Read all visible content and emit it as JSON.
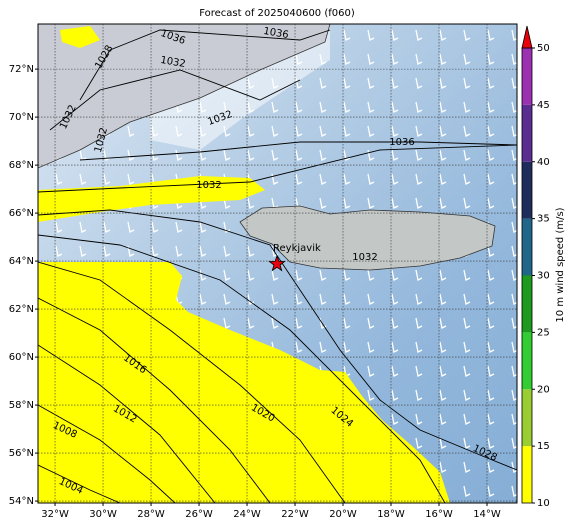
{
  "title": "Forecast of 2025040600 (f060)",
  "map": {
    "lonlim": [
      -32.71,
      -12.75
    ],
    "latlim": [
      53.92,
      73.88
    ],
    "grid": true,
    "lonticks": [
      {
        "value": -32,
        "label": "32°W"
      },
      {
        "value": -30,
        "label": "30°W"
      },
      {
        "value": -28,
        "label": "28°W"
      },
      {
        "value": -26,
        "label": "26°W"
      },
      {
        "value": -24,
        "label": "24°W"
      },
      {
        "value": -22,
        "label": "22°W"
      },
      {
        "value": -20,
        "label": "20°W"
      },
      {
        "value": -18,
        "label": "18°W"
      },
      {
        "value": -16,
        "label": "16°W"
      },
      {
        "value": -14,
        "label": "14°W"
      }
    ],
    "latticks": [
      {
        "value": 72,
        "label": "72°N"
      },
      {
        "value": 70,
        "label": "70°N"
      },
      {
        "value": 68,
        "label": "68°N"
      },
      {
        "value": 66,
        "label": "66°N"
      },
      {
        "value": 64,
        "label": "64°N"
      },
      {
        "value": 62,
        "label": "62°N"
      },
      {
        "value": 60,
        "label": "60°N"
      },
      {
        "value": 58,
        "label": "58°N"
      },
      {
        "value": 56,
        "label": "56°N"
      },
      {
        "value": 54,
        "label": "54°N"
      }
    ]
  },
  "colorbar": {
    "label": "10 m wind speed (m/s)",
    "lim": [
      10,
      50
    ],
    "ticks": [
      10,
      15,
      20,
      25,
      30,
      35,
      40,
      45,
      50
    ],
    "colors": [
      "#ffff00",
      "#9acd32",
      "#32cd32",
      "#1e9a1e",
      "#1f6688",
      "#1f2d5c",
      "#5a2d91",
      "#9b30b0"
    ],
    "extend_color": "#e8000b"
  },
  "contour_labels": [
    1036,
    1036,
    1028,
    1032,
    1032,
    1032,
    1032,
    1036,
    1032,
    1032,
    1016,
    1012,
    1008,
    1004,
    1020,
    1024,
    1028
  ],
  "city": {
    "name": "Reykjavik",
    "lon": -22.75,
    "lat": 63.88,
    "color": "#e8000b"
  }
}
